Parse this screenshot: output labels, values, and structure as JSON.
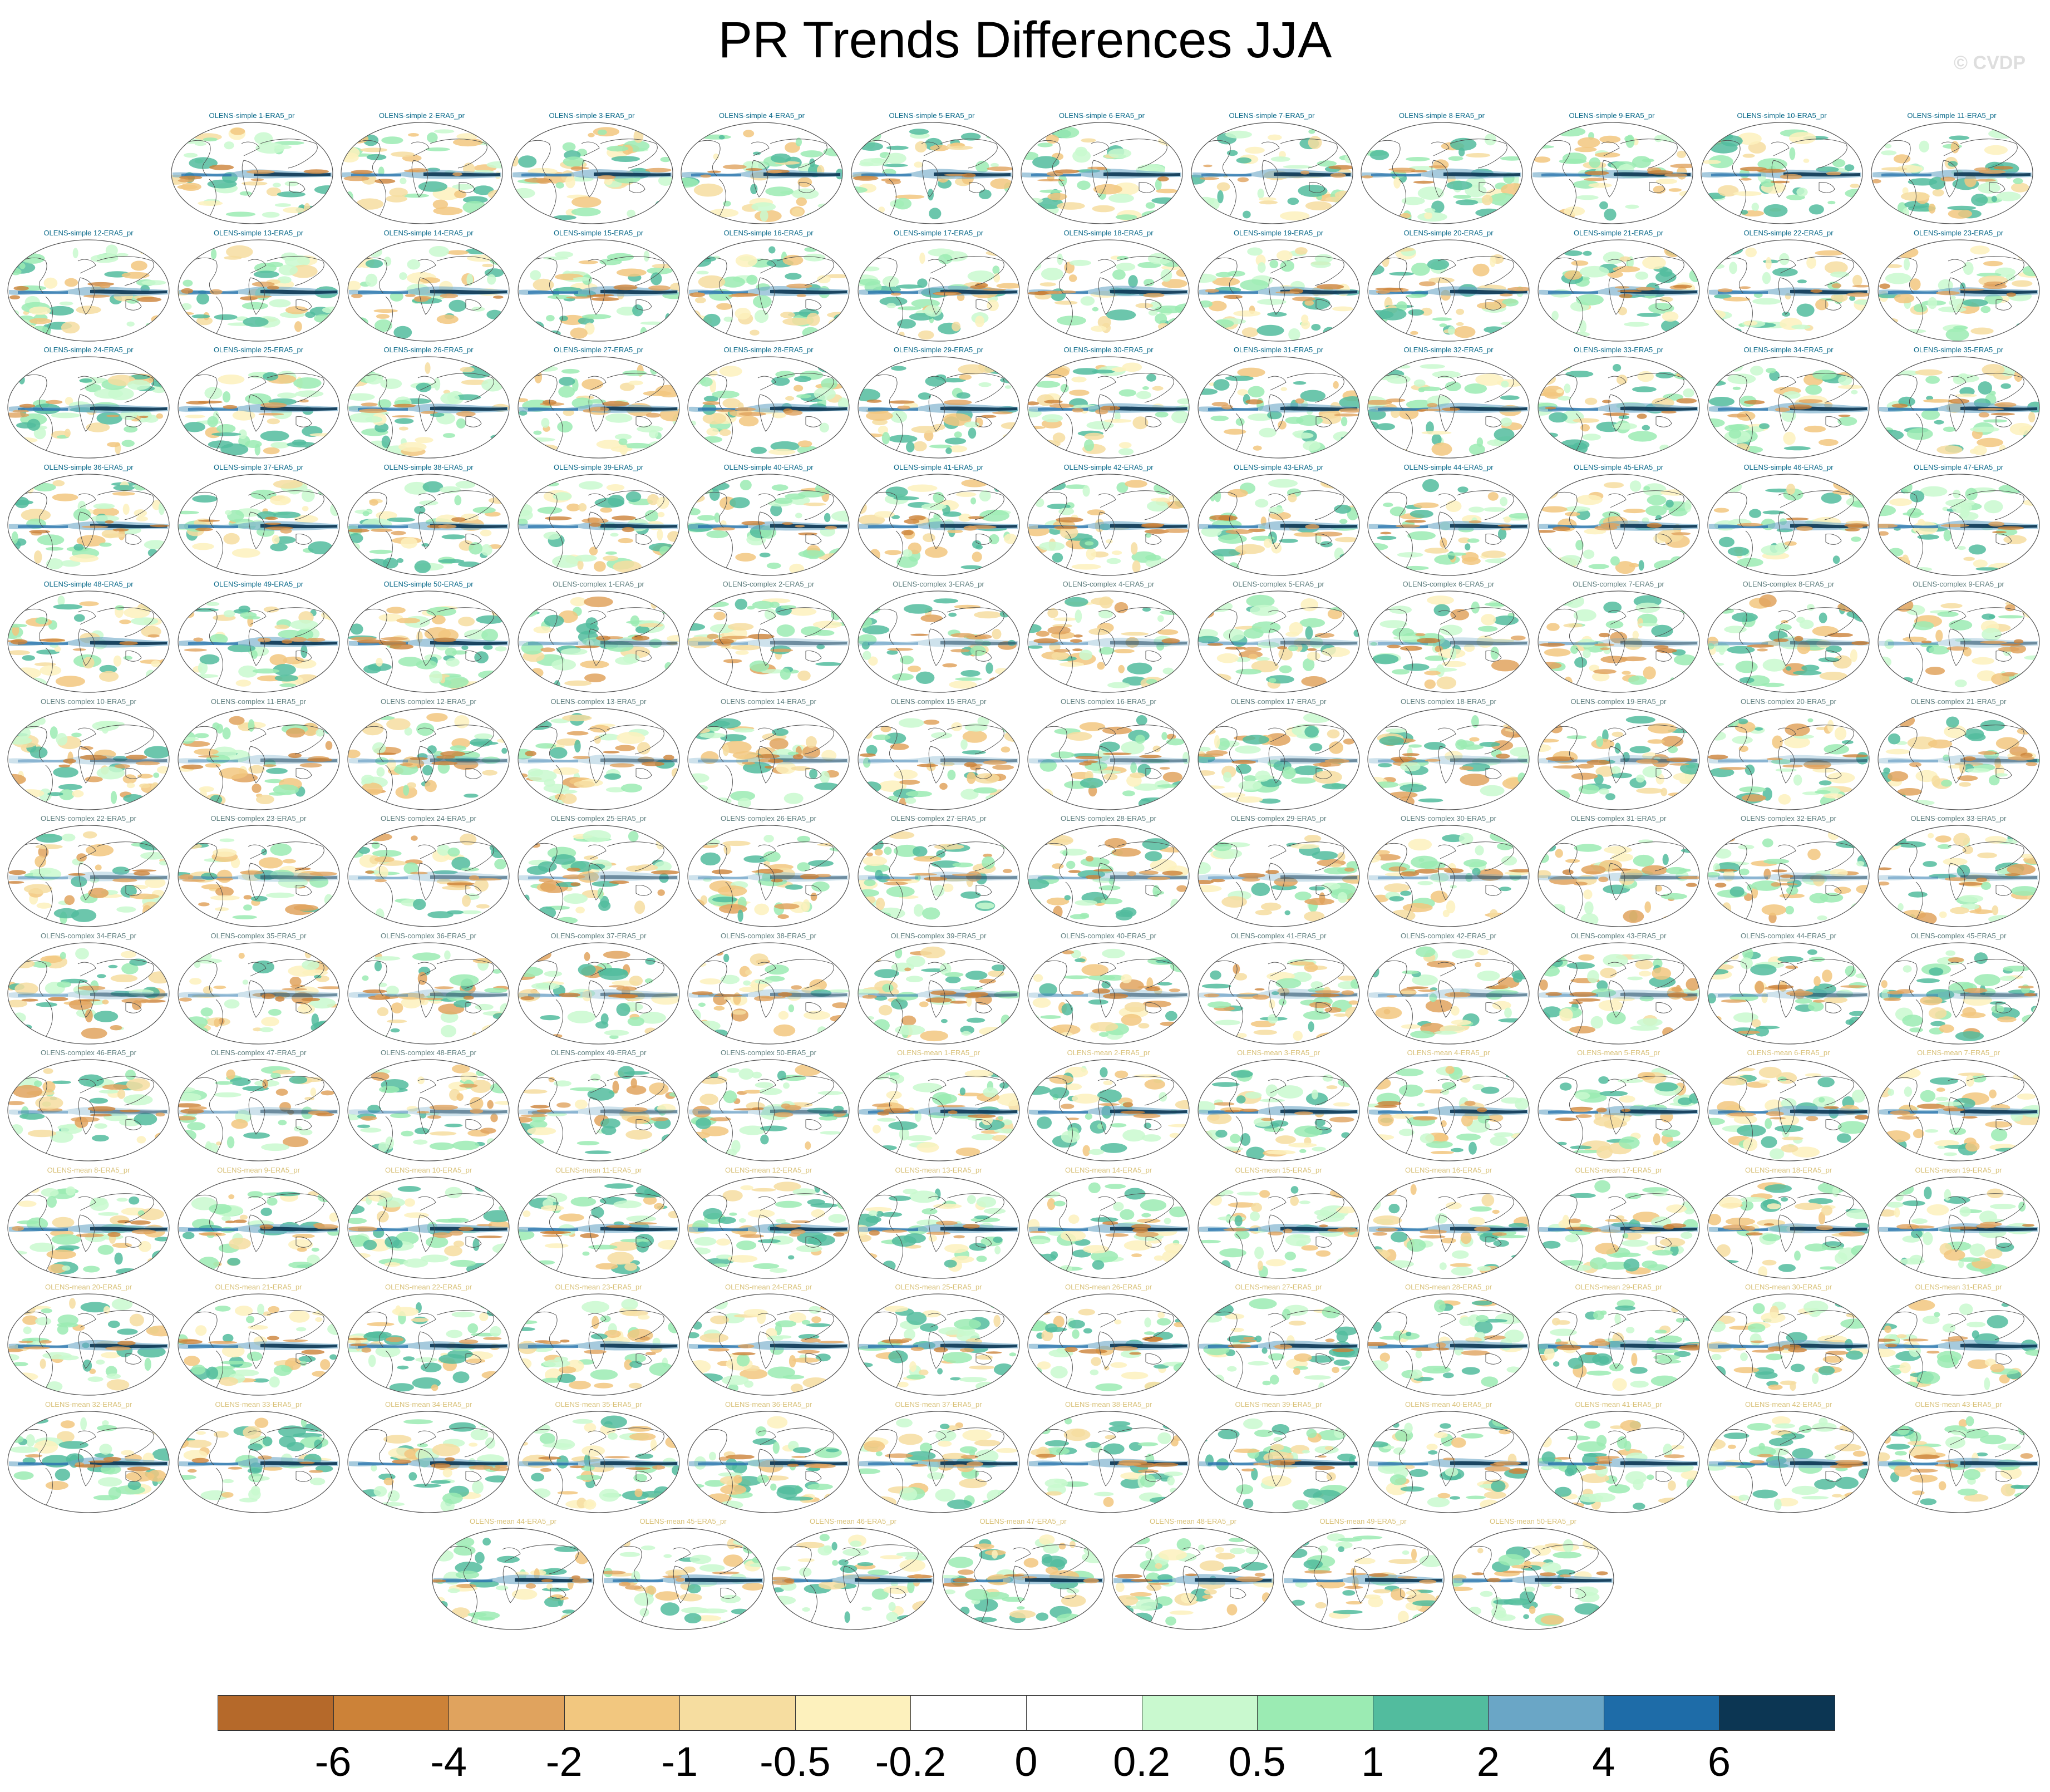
{
  "title": "PR Trends Differences JJA",
  "watermark": "© CVDP",
  "label_colors": {
    "simple": "#0b6a8a",
    "complex": "#5f7f7f",
    "mean": "#d9c27a"
  },
  "panel_rows": [
    [
      "OLENS-simple 1-ERA5_pr",
      "OLENS-simple 2-ERA5_pr",
      "OLENS-simple 3-ERA5_pr",
      "OLENS-simple 4-ERA5_pr",
      "OLENS-simple 5-ERA5_pr",
      "OLENS-simple 6-ERA5_pr",
      "OLENS-simple 7-ERA5_pr",
      "OLENS-simple 8-ERA5_pr",
      "OLENS-simple 9-ERA5_pr",
      "OLENS-simple 10-ERA5_pr",
      "OLENS-simple 11-ERA5_pr"
    ],
    [
      "OLENS-simple 12-ERA5_pr",
      "OLENS-simple 13-ERA5_pr",
      "OLENS-simple 14-ERA5_pr",
      "OLENS-simple 15-ERA5_pr",
      "OLENS-simple 16-ERA5_pr",
      "OLENS-simple 17-ERA5_pr",
      "OLENS-simple 18-ERA5_pr",
      "OLENS-simple 19-ERA5_pr",
      "OLENS-simple 20-ERA5_pr",
      "OLENS-simple 21-ERA5_pr",
      "OLENS-simple 22-ERA5_pr",
      "OLENS-simple 23-ERA5_pr"
    ],
    [
      "OLENS-simple 24-ERA5_pr",
      "OLENS-simple 25-ERA5_pr",
      "OLENS-simple 26-ERA5_pr",
      "OLENS-simple 27-ERA5_pr",
      "OLENS-simple 28-ERA5_pr",
      "OLENS-simple 29-ERA5_pr",
      "OLENS-simple 30-ERA5_pr",
      "OLENS-simple 31-ERA5_pr",
      "OLENS-simple 32-ERA5_pr",
      "OLENS-simple 33-ERA5_pr",
      "OLENS-simple 34-ERA5_pr",
      "OLENS-simple 35-ERA5_pr"
    ],
    [
      "OLENS-simple 36-ERA5_pr",
      "OLENS-simple 37-ERA5_pr",
      "OLENS-simple 38-ERA5_pr",
      "OLENS-simple 39-ERA5_pr",
      "OLENS-simple 40-ERA5_pr",
      "OLENS-simple 41-ERA5_pr",
      "OLENS-simple 42-ERA5_pr",
      "OLENS-simple 43-ERA5_pr",
      "OLENS-simple 44-ERA5_pr",
      "OLENS-simple 45-ERA5_pr",
      "OLENS-simple 46-ERA5_pr",
      "OLENS-simple 47-ERA5_pr"
    ],
    [
      "OLENS-simple 48-ERA5_pr",
      "OLENS-simple 49-ERA5_pr",
      "OLENS-simple 50-ERA5_pr",
      "OLENS-complex 1-ERA5_pr",
      "OLENS-complex 2-ERA5_pr",
      "OLENS-complex 3-ERA5_pr",
      "OLENS-complex 4-ERA5_pr",
      "OLENS-complex 5-ERA5_pr",
      "OLENS-complex 6-ERA5_pr",
      "OLENS-complex 7-ERA5_pr",
      "OLENS-complex 8-ERA5_pr",
      "OLENS-complex 9-ERA5_pr"
    ],
    [
      "OLENS-complex 10-ERA5_pr",
      "OLENS-complex 11-ERA5_pr",
      "OLENS-complex 12-ERA5_pr",
      "OLENS-complex 13-ERA5_pr",
      "OLENS-complex 14-ERA5_pr",
      "OLENS-complex 15-ERA5_pr",
      "OLENS-complex 16-ERA5_pr",
      "OLENS-complex 17-ERA5_pr",
      "OLENS-complex 18-ERA5_pr",
      "OLENS-complex 19-ERA5_pr",
      "OLENS-complex 20-ERA5_pr",
      "OLENS-complex 21-ERA5_pr"
    ],
    [
      "OLENS-complex 22-ERA5_pr",
      "OLENS-complex 23-ERA5_pr",
      "OLENS-complex 24-ERA5_pr",
      "OLENS-complex 25-ERA5_pr",
      "OLENS-complex 26-ERA5_pr",
      "OLENS-complex 27-ERA5_pr",
      "OLENS-complex 28-ERA5_pr",
      "OLENS-complex 29-ERA5_pr",
      "OLENS-complex 30-ERA5_pr",
      "OLENS-complex 31-ERA5_pr",
      "OLENS-complex 32-ERA5_pr",
      "OLENS-complex 33-ERA5_pr"
    ],
    [
      "OLENS-complex 34-ERA5_pr",
      "OLENS-complex 35-ERA5_pr",
      "OLENS-complex 36-ERA5_pr",
      "OLENS-complex 37-ERA5_pr",
      "OLENS-complex 38-ERA5_pr",
      "OLENS-complex 39-ERA5_pr",
      "OLENS-complex 40-ERA5_pr",
      "OLENS-complex 41-ERA5_pr",
      "OLENS-complex 42-ERA5_pr",
      "OLENS-complex 43-ERA5_pr",
      "OLENS-complex 44-ERA5_pr",
      "OLENS-complex 45-ERA5_pr"
    ],
    [
      "OLENS-complex 46-ERA5_pr",
      "OLENS-complex 47-ERA5_pr",
      "OLENS-complex 48-ERA5_pr",
      "OLENS-complex 49-ERA5_pr",
      "OLENS-complex 50-ERA5_pr",
      "OLENS-mean 1-ERA5_pr",
      "OLENS-mean 2-ERA5_pr",
      "OLENS-mean 3-ERA5_pr",
      "OLENS-mean 4-ERA5_pr",
      "OLENS-mean 5-ERA5_pr",
      "OLENS-mean 6-ERA5_pr",
      "OLENS-mean 7-ERA5_pr"
    ],
    [
      "OLENS-mean 8-ERA5_pr",
      "OLENS-mean 9-ERA5_pr",
      "OLENS-mean 10-ERA5_pr",
      "OLENS-mean 11-ERA5_pr",
      "OLENS-mean 12-ERA5_pr",
      "OLENS-mean 13-ERA5_pr",
      "OLENS-mean 14-ERA5_pr",
      "OLENS-mean 15-ERA5_pr",
      "OLENS-mean 16-ERA5_pr",
      "OLENS-mean 17-ERA5_pr",
      "OLENS-mean 18-ERA5_pr",
      "OLENS-mean 19-ERA5_pr"
    ],
    [
      "OLENS-mean 20-ERA5_pr",
      "OLENS-mean 21-ERA5_pr",
      "OLENS-mean 22-ERA5_pr",
      "OLENS-mean 23-ERA5_pr",
      "OLENS-mean 24-ERA5_pr",
      "OLENS-mean 25-ERA5_pr",
      "OLENS-mean 26-ERA5_pr",
      "OLENS-mean 27-ERA5_pr",
      "OLENS-mean 28-ERA5_pr",
      "OLENS-mean 29-ERA5_pr",
      "OLENS-mean 30-ERA5_pr",
      "OLENS-mean 31-ERA5_pr"
    ],
    [
      "OLENS-mean 32-ERA5_pr",
      "OLENS-mean 33-ERA5_pr",
      "OLENS-mean 34-ERA5_pr",
      "OLENS-mean 35-ERA5_pr",
      "OLENS-mean 36-ERA5_pr",
      "OLENS-mean 37-ERA5_pr",
      "OLENS-mean 38-ERA5_pr",
      "OLENS-mean 39-ERA5_pr",
      "OLENS-mean 40-ERA5_pr",
      "OLENS-mean 41-ERA5_pr",
      "OLENS-mean 42-ERA5_pr",
      "OLENS-mean 43-ERA5_pr"
    ],
    [
      "OLENS-mean 44-ERA5_pr",
      "OLENS-mean 45-ERA5_pr",
      "OLENS-mean 46-ERA5_pr",
      "OLENS-mean 47-ERA5_pr",
      "OLENS-mean 48-ERA5_pr",
      "OLENS-mean 49-ERA5_pr",
      "OLENS-mean 50-ERA5_pr"
    ]
  ],
  "colorbar": {
    "ticks": [
      "-6",
      "-4",
      "-2",
      "-1",
      "-0.5",
      "-0.2",
      "0",
      "0.2",
      "0.5",
      "1",
      "2",
      "4",
      "6"
    ],
    "colors": [
      "#b5692a",
      "#cc8238",
      "#e0a35e",
      "#f2c77f",
      "#f6dda0",
      "#fdf1bd",
      "#ffffff",
      "#ffffff",
      "#c9f9cf",
      "#9bebb3",
      "#52bc9e",
      "#6aa6c6",
      "#1e6ca8",
      "#0c3653"
    ]
  }
}
